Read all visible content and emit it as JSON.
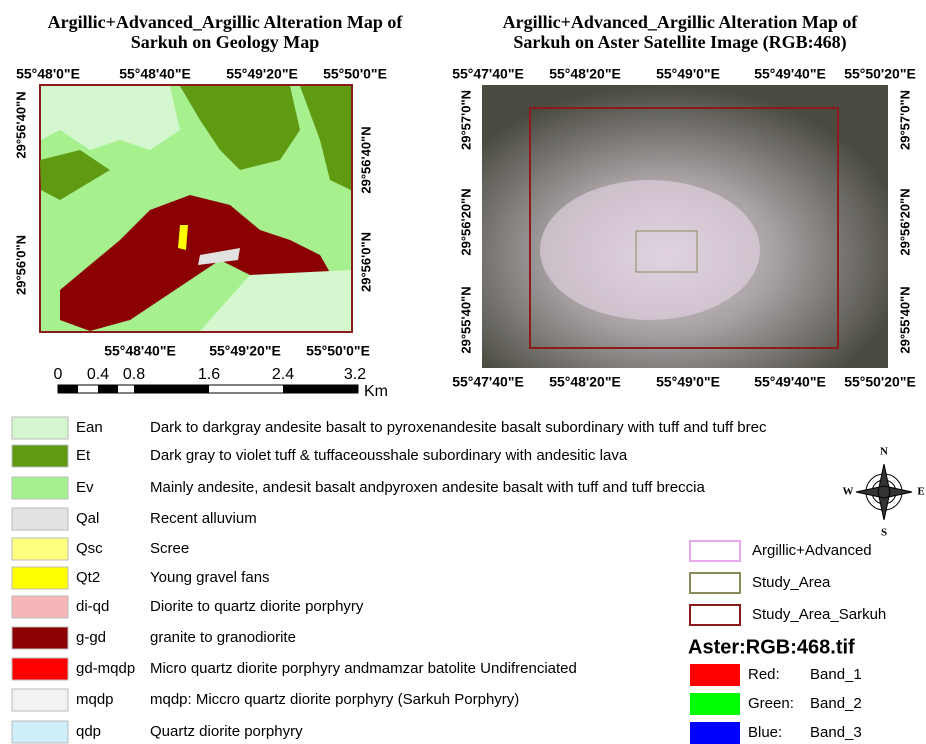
{
  "left_map": {
    "title": [
      "Argillic+Advanced_Argillic Alteration Map of",
      "Sarkuh on Geology Map"
    ],
    "top_labels": [
      "55°48'0\"E",
      "55°48'40\"E",
      "55°49'20\"E",
      "55°50'0\"E"
    ],
    "bottom_labels": [
      "55°48'40\"E",
      "55°49'20\"E",
      "55°50'0\"E"
    ],
    "left_labels": [
      "29°56'40\"N",
      "29°56'0\"N"
    ],
    "right_labels": [
      "29°56'40\"N",
      "29°56'0\"N"
    ]
  },
  "scale_bar": {
    "labels": [
      "0",
      "0.4",
      "0.8",
      "1.6",
      "2.4",
      "3.2"
    ],
    "unit": "Km"
  },
  "right_map": {
    "title": [
      "Argillic+Advanced_Argillic Alteration Map of",
      "Sarkuh on Aster Satellite Image (RGB:468)"
    ],
    "top_labels": [
      "55°47'40\"E",
      "55°48'20\"E",
      "55°49'0\"E",
      "55°49'40\"E",
      "55°50'20\"E"
    ],
    "bottom_labels": [
      "55°47'40\"E",
      "55°48'20\"E",
      "55°49'0\"E",
      "55°49'40\"E",
      "55°50'20\"E"
    ],
    "left_labels": [
      "29°57'0\"N",
      "29°56'20\"N",
      "29°55'40\"N"
    ],
    "right_labels": [
      "29°57'0\"N",
      "29°56'20\"N",
      "29°55'40\"N"
    ]
  },
  "geology_legend": [
    {
      "code": "Ean",
      "description": "Dark to darkgray andesite basalt to pyroxenandesite basalt subordinary with tuff and tuff brec",
      "color": "#d4f7cf"
    },
    {
      "code": "Et",
      "description": "Dark gray to violet tuff & tuffaceousshale subordinary with andesitic lava",
      "color": "#5f9a12"
    },
    {
      "code": "Ev",
      "description": "Mainly andesite, andesit basalt andpyroxen andesite basalt with tuff and tuff breccia",
      "color": "#a6f08e"
    },
    {
      "code": "Qal",
      "description": "Recent alluvium",
      "color": "#e2e2e2"
    },
    {
      "code": "Qsc",
      "description": "Scree",
      "color": "#ffff80"
    },
    {
      "code": "Qt2",
      "description": "Young gravel fans",
      "color": "#ffff00"
    },
    {
      "code": "di-qd",
      "description": "Diorite to quartz diorite porphyry",
      "color": "#f4b6b6"
    },
    {
      "code": "g-gd",
      "description": "granite to granodiorite",
      "color": "#8b0000"
    },
    {
      "code": "gd-mqdp",
      "description": "Micro quartz diorite porphyry andmamzar batolite Undifrenciated",
      "color": "#ff0000"
    },
    {
      "code": "mqdp",
      "description": "mqdp: Miccro quartz diorite porphyry (Sarkuh Porphyry)",
      "color": "#f2f2f2"
    },
    {
      "code": "qdp",
      "description": "Quartz diorite porphyry",
      "color": "#cdeefa"
    }
  ],
  "map_legend": [
    {
      "label": "Argillic+Advanced",
      "color": "#e8a8ec"
    },
    {
      "label": "Study_Area",
      "color": "#8a8a5a"
    },
    {
      "label": "Study_Area_Sarkuh",
      "color": "#8b1a1a"
    }
  ],
  "raster": {
    "title": "Aster:RGB:468.tif",
    "bands": [
      {
        "channel": "Red:",
        "band": "Band_1",
        "color": "#ff0000"
      },
      {
        "channel": "Green:",
        "band": "Band_2",
        "color": "#00ff00"
      },
      {
        "channel": "Blue:",
        "band": "Band_3",
        "color": "#0000ff"
      }
    ]
  },
  "north_arrow": {
    "n": "N",
    "e": "E",
    "s": "S",
    "w": "W"
  }
}
